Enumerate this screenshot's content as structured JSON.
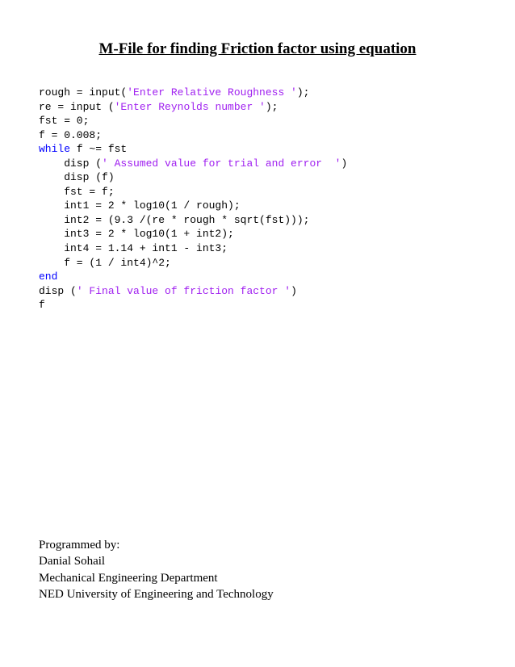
{
  "title": "M-File for finding Friction factor using equation",
  "code": {
    "line1_pre": "rough = input(",
    "line1_str": "'Enter Relative Roughness '",
    "line1_post": ");",
    "line2_pre": "re = input (",
    "line2_str": "'Enter Reynolds number '",
    "line2_post": ");",
    "line3": "fst = 0;",
    "line4": "f = 0.008;",
    "line5_kw": "while",
    "line5_rest": " f ~= fst",
    "line6_pre": "    disp (",
    "line6_str": "' Assumed value for trial and error  '",
    "line6_post": ")",
    "line7": "    disp (f)",
    "line8": "    fst = f;",
    "line9": "    int1 = 2 * log10(1 / rough);",
    "line10": "    int2 = (9.3 /(re * rough * sqrt(fst)));",
    "line11": "    int3 = 2 * log10(1 + int2);",
    "line12": "    int4 = 1.14 + int1 - int3;",
    "line13": "    f = (1 / int4)^2;",
    "line14_kw": "end",
    "line15_pre": "disp (",
    "line15_str": "' Final value of friction factor '",
    "line15_post": ")",
    "line16": "f"
  },
  "footer": {
    "l1": "Programmed by:",
    "l2": "Danial Sohail",
    "l3": "Mechanical Engineering Department",
    "l4": "NED University of Engineering and Technology"
  },
  "colors": {
    "keyword": "#0000ff",
    "string": "#a020f0",
    "text": "#000000",
    "background": "#ffffff"
  },
  "fontsizes": {
    "title": 19,
    "code": 13,
    "footer": 15
  }
}
